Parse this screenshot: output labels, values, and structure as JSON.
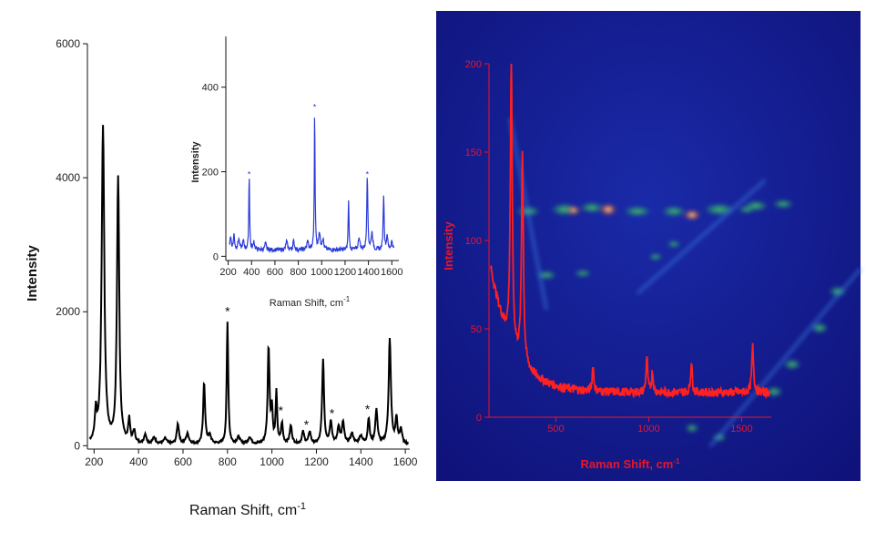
{
  "chart_data": [
    {
      "type": "line",
      "name": "main-spectrum",
      "xlabel": "Raman Shift, cm",
      "xlabel_sup": "-1",
      "ylabel": "Intensity",
      "xlim": [
        170,
        1620
      ],
      "ylim": [
        -50,
        6000
      ],
      "xticks": [
        200,
        400,
        600,
        800,
        1000,
        1200,
        1400,
        1600
      ],
      "yticks": [
        0,
        2000,
        4000,
        6000
      ],
      "line_color": "#000000",
      "baseline": 20,
      "peaks": [
        [
          208,
          420,
          5
        ],
        [
          240,
          4720,
          7
        ],
        [
          308,
          3960,
          6
        ],
        [
          358,
          340,
          5
        ],
        [
          380,
          180,
          6
        ],
        [
          430,
          140,
          6
        ],
        [
          470,
          90,
          8
        ],
        [
          520,
          80,
          8
        ],
        [
          577,
          300,
          6
        ],
        [
          620,
          150,
          8
        ],
        [
          695,
          920,
          5
        ],
        [
          720,
          120,
          8
        ],
        [
          800,
          1820,
          4
        ],
        [
          850,
          100,
          8
        ],
        [
          900,
          100,
          8
        ],
        [
          985,
          1440,
          5
        ],
        [
          1000,
          500,
          4
        ],
        [
          1020,
          760,
          4
        ],
        [
          1045,
          300,
          5
        ],
        [
          1085,
          270,
          6
        ],
        [
          1140,
          180,
          6
        ],
        [
          1170,
          180,
          6
        ],
        [
          1230,
          1250,
          5
        ],
        [
          1265,
          330,
          6
        ],
        [
          1300,
          250,
          6
        ],
        [
          1320,
          320,
          6
        ],
        [
          1360,
          150,
          8
        ],
        [
          1400,
          120,
          8
        ],
        [
          1435,
          380,
          5
        ],
        [
          1470,
          500,
          6
        ],
        [
          1530,
          1560,
          6
        ],
        [
          1560,
          380,
          5
        ],
        [
          1580,
          220,
          6
        ]
      ],
      "star_markers": [
        {
          "x": 800,
          "y": 2020,
          "text": "*"
        },
        {
          "x": 1040,
          "y": 540,
          "text": "*"
        },
        {
          "x": 1155,
          "y": 330,
          "text": "*"
        },
        {
          "x": 1270,
          "y": 500,
          "text": "*"
        },
        {
          "x": 1430,
          "y": 560,
          "text": "*"
        }
      ]
    },
    {
      "type": "line",
      "name": "inset-spectrum",
      "xlabel": "Raman Shift, cm",
      "xlabel_sup": "-1",
      "ylabel": "Intensity",
      "xlim": [
        180,
        1660
      ],
      "ylim": [
        -10,
        520
      ],
      "xticks": [
        200,
        400,
        600,
        800,
        1000,
        1200,
        1400,
        1600
      ],
      "yticks": [
        0,
        200,
        400
      ],
      "line_color": "#2a3bd8",
      "baseline": 15,
      "peaks": [
        [
          220,
          30,
          8
        ],
        [
          250,
          35,
          6
        ],
        [
          290,
          25,
          8
        ],
        [
          330,
          20,
          8
        ],
        [
          380,
          180,
          4
        ],
        [
          420,
          20,
          6
        ],
        [
          520,
          15,
          8
        ],
        [
          700,
          20,
          8
        ],
        [
          760,
          20,
          8
        ],
        [
          880,
          20,
          8
        ],
        [
          940,
          330,
          4
        ],
        [
          980,
          40,
          8
        ],
        [
          1010,
          25,
          8
        ],
        [
          1230,
          120,
          4
        ],
        [
          1320,
          30,
          8
        ],
        [
          1390,
          180,
          5
        ],
        [
          1430,
          40,
          8
        ],
        [
          1530,
          130,
          5
        ],
        [
          1560,
          35,
          6
        ],
        [
          1600,
          20,
          8
        ]
      ],
      "star_markers": [
        {
          "x": 380,
          "y": 200,
          "text": "*"
        },
        {
          "x": 940,
          "y": 360,
          "text": "*"
        },
        {
          "x": 1390,
          "y": 200,
          "text": "*"
        }
      ]
    },
    {
      "type": "line",
      "name": "overlay-spectrum",
      "xlabel": "Raman Shift, cm",
      "xlabel_sup": "-1",
      "ylabel": "Intensity",
      "xlim": [
        140,
        1660
      ],
      "ylim": [
        0,
        200
      ],
      "xticks": [
        500,
        1000,
        1500
      ],
      "yticks": [
        0,
        50,
        100,
        150,
        200
      ],
      "line_color": "#ff2020",
      "axis_color": "#e8152b",
      "background_color": "#14148c",
      "baseline_decay": {
        "amplitude": 70,
        "length": 120,
        "floor": 14,
        "start": 150
      },
      "peaks": [
        [
          260,
          160,
          6
        ],
        [
          320,
          120,
          6
        ],
        [
          700,
          15,
          5
        ],
        [
          990,
          20,
          5
        ],
        [
          1020,
          12,
          5
        ],
        [
          1230,
          18,
          5
        ],
        [
          1560,
          26,
          6
        ]
      ]
    }
  ]
}
